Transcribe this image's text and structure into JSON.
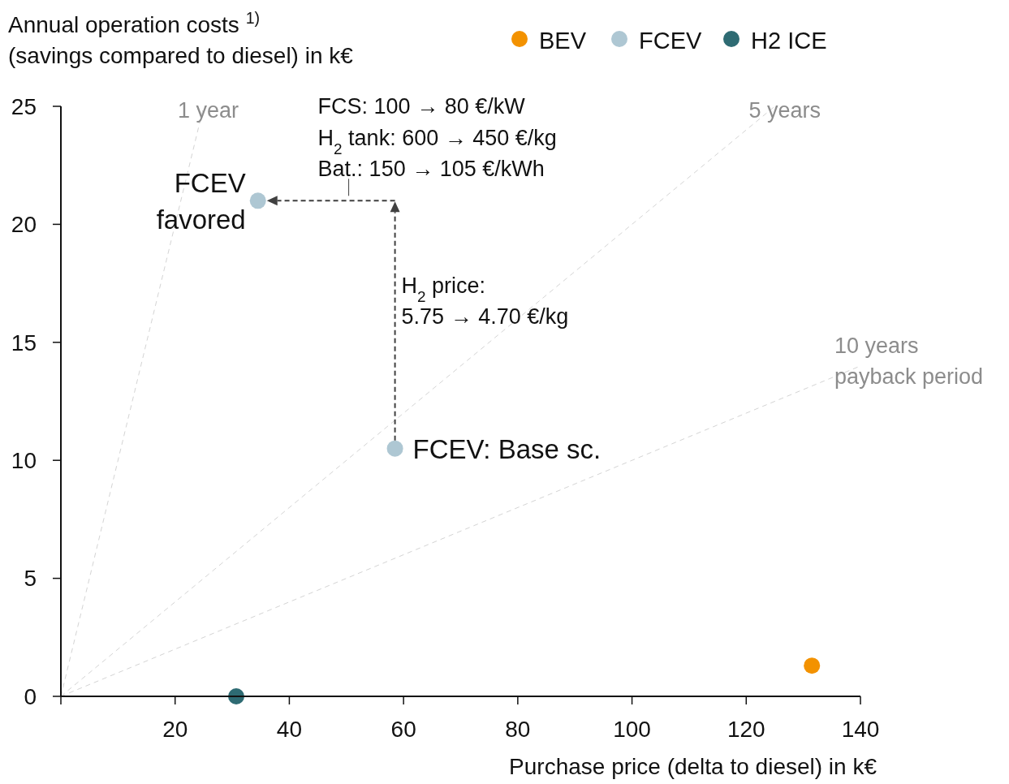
{
  "chart_data": {
    "type": "scatter",
    "xlabel": "Purchase price (delta to diesel) in k€",
    "ylabel": "Annual operation costs $^{1)}$\n(savings compared to diesel) in k€",
    "xlim": [
      0,
      140
    ],
    "xticks": [
      {
        "value": 0,
        "label": null
      },
      20,
      40,
      60,
      80,
      100,
      120,
      140
    ],
    "ylim": [
      0,
      25
    ],
    "yticks": [
      0,
      5,
      10,
      15,
      20,
      25
    ],
    "legend": "top right",
    "marker": "circle",
    "series": [
      {
        "name": "1 year",
        "type": "line",
        "color": "#d4d4d4",
        "line_style": "dashed",
        "marker": "none",
        "x": [
          0,
          25
        ],
        "values": [
          0,
          25
        ]
      },
      {
        "name": "5 years",
        "type": "line",
        "color": "#d4d4d4",
        "line_style": "dashed",
        "marker": "none",
        "x": [
          0,
          125
        ],
        "values": [
          0,
          25
        ]
      },
      {
        "name": "10 years\npayback period",
        "type": "line",
        "color": "#d4d4d4",
        "line_style": "dashed",
        "marker": "none",
        "x": [
          0,
          140
        ],
        "values": [
          0,
          14
        ]
      },
      {
        "name": "BEV",
        "color": "#f39200",
        "x": [
          131.5
        ],
        "values": [
          1.3
        ]
      },
      {
        "name": "FCEV",
        "color": "#aec7d3",
        "x": [
          58.5,
          34.5
        ],
        "values": [
          10.5,
          21
        ]
      },
      {
        "name": "H2 ICE",
        "color": "#2e6b73",
        "x": [
          30.7
        ],
        "values": [
          0
        ]
      }
    ],
    "annotations": [
      {
        "text": "FCEV: Base sc.",
        "x": 58.5,
        "y": 10.5
      },
      {
        "text": "FCEV\nfavored",
        "x": 34.5,
        "y": 21
      },
      "FCS: 100 → 80 €/kW",
      "H$_{2}$ tank: 600 → 450 €/kg",
      "Bat.: 150 → 105 €/kWh",
      "H$_{2}$ price:",
      "5.75 → 4.70 €/kg"
    ]
  }
}
